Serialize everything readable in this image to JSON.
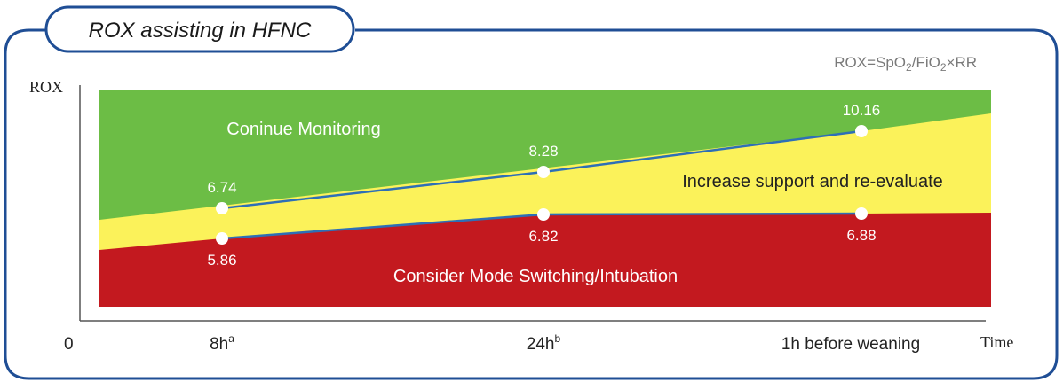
{
  "header": {
    "title": "ROX assisting in HFNC"
  },
  "formula": {
    "prefix": "ROX=SpO",
    "sub1": "2",
    "mid": "/FiO",
    "sub2": "2",
    "suffix": "×RR"
  },
  "chart_data": {
    "type": "line",
    "ylabel": "ROX",
    "xlabel": "Time",
    "origin_label": "0",
    "categories": [
      {
        "main": "8h",
        "sup": "a"
      },
      {
        "main": "24h",
        "sup": "b"
      },
      {
        "main": "1h before weaning",
        "sup": ""
      }
    ],
    "series": [
      {
        "values": [
          6.74,
          8.28,
          10.16
        ]
      },
      {
        "values": [
          5.86,
          6.82,
          6.88
        ]
      }
    ],
    "zones": [
      {
        "label": "Coninue Monitoring",
        "color": "#6cbd45"
      },
      {
        "label": "Increase support and re-evaluate",
        "color": "#fbf25a"
      },
      {
        "label": "Consider Mode Switching/Intubation",
        "color": "#c3191f"
      }
    ],
    "line_color": "#2e6fb6",
    "frame_color": "#1f4e95"
  }
}
